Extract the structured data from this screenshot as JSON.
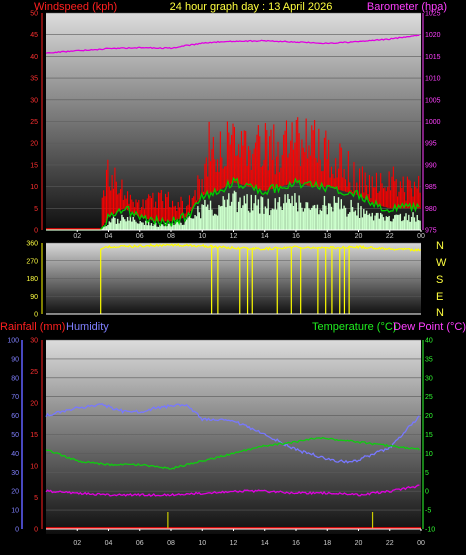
{
  "header": {
    "left_label": "Windspeed (kph)",
    "title": "24 hour graph day : 13 April 2026",
    "right_label": "Barometer (hpa)"
  },
  "colors": {
    "wind_gust": "#ff0000",
    "wind_avg": "#00cc00",
    "wind_min": "#ccffcc",
    "barometer": "#e000e0",
    "direction": "#ffff00",
    "rain": "#ff0000",
    "humidity": "#7878ff",
    "temperature": "#10cc10",
    "dewpoint": "#e000e0",
    "rain_tick": "#cccc00"
  },
  "x_ticks": [
    "02",
    "04",
    "06",
    "08",
    "10",
    "12",
    "14",
    "16",
    "18",
    "20",
    "22",
    "00"
  ],
  "wind_panel": {
    "left_ticks": [
      "0",
      "5",
      "10",
      "15",
      "20",
      "25",
      "30",
      "35",
      "40",
      "45",
      "50"
    ],
    "right_ticks": [
      "975",
      "980",
      "985",
      "990",
      "995",
      "1000",
      "1005",
      "1010",
      "1015",
      "1020",
      "1025"
    ]
  },
  "direction_panel": {
    "left_ticks": [
      "0",
      "90",
      "180",
      "270",
      "360"
    ],
    "compass": [
      "N",
      "W",
      "S",
      "E",
      "N"
    ]
  },
  "climate_panel": {
    "rain_label": "Rainfall (mm)",
    "humidity_label": "Humidity",
    "temperature_label": "Temperature (°C)",
    "dewpoint_label": "Dew Point (°C)",
    "humidity_ticks": [
      "0",
      "10",
      "20",
      "30",
      "40",
      "50",
      "60",
      "70",
      "80",
      "90",
      "100"
    ],
    "rain_ticks": [
      "0",
      "5",
      "10",
      "15",
      "20",
      "25",
      "30"
    ],
    "temp_ticks": [
      "-10",
      "-5",
      "0",
      "5",
      "10",
      "15",
      "20",
      "25",
      "30",
      "35",
      "40"
    ]
  },
  "chart_data": [
    {
      "type": "line",
      "title": "24 hour graph day : 13 April 2026",
      "x_unit": "hours since midnight (00 … 24)",
      "y_left": {
        "label": "Windspeed (kph)",
        "ylim": [
          0,
          50
        ]
      },
      "y_right": {
        "label": "Barometer (hpa)",
        "ylim": [
          975,
          1025
        ]
      },
      "series": [
        {
          "name": "Barometer (hpa)",
          "axis": "right",
          "x": [
            0,
            2,
            4,
            6,
            8,
            9,
            10,
            11,
            12,
            14,
            16,
            18,
            20,
            22,
            24
          ],
          "values": [
            1015.8,
            1016.3,
            1016.8,
            1017.0,
            1016.9,
            1017.5,
            1018.0,
            1018.3,
            1018.5,
            1018.6,
            1018.3,
            1018.0,
            1018.4,
            1019.0,
            1020.0
          ]
        }
      ],
      "unnamed_series_visible": [
        {
          "axis": "left",
          "style": "red gust spikes",
          "x": [
            0,
            1,
            2,
            3,
            3.5,
            4,
            4.5,
            5,
            6,
            7,
            8,
            9,
            10,
            10.5,
            11,
            12,
            13,
            14,
            15,
            16,
            17,
            18,
            19,
            20,
            21,
            22,
            23,
            24
          ],
          "values": [
            0,
            0,
            0,
            0,
            8,
            16,
            14,
            10,
            7,
            8,
            9,
            6,
            14,
            24,
            22,
            25,
            22,
            25,
            22,
            25,
            24,
            22,
            18,
            14,
            12,
            14,
            12,
            13
          ]
        },
        {
          "axis": "left",
          "style": "green average line",
          "x": [
            0,
            3.5,
            4,
            5,
            6,
            7,
            8,
            9,
            10,
            11,
            12,
            13,
            14,
            15,
            16,
            17,
            18,
            19,
            20,
            21,
            22,
            23,
            24
          ],
          "values": [
            0,
            0,
            3,
            5,
            3,
            2,
            2,
            3,
            8,
            9,
            11,
            10,
            9,
            10,
            11,
            10,
            10,
            9,
            8,
            6,
            5,
            5,
            5
          ]
        }
      ]
    },
    {
      "type": "scatter",
      "y_left": {
        "label": "",
        "ylim": [
          0,
          360
        ]
      },
      "series": [
        {
          "name": "wind direction",
          "x": [
            3.5,
            4,
            6,
            8,
            10,
            12,
            14,
            16,
            18,
            20,
            22,
            24
          ],
          "values": [
            330,
            340,
            345,
            350,
            345,
            335,
            330,
            340,
            335,
            340,
            330,
            325
          ]
        }
      ]
    },
    {
      "type": "line",
      "y_left_outer": {
        "label": "Humidity",
        "ylim": [
          0,
          100
        ]
      },
      "y_left_inner": {
        "label": "Rainfall (mm)",
        "ylim": [
          0,
          30
        ]
      },
      "y_right": {
        "label": "Temperature (°C)",
        "ylim": [
          -10,
          40
        ]
      },
      "series": [
        {
          "name": "Humidity",
          "axis": "left_outer",
          "x": [
            0,
            2,
            3.5,
            5,
            6,
            7,
            8,
            9,
            10,
            12,
            14,
            16,
            18,
            19.5,
            21,
            22,
            23,
            24
          ],
          "values": [
            60,
            64,
            66,
            62,
            62,
            64,
            65,
            66,
            58,
            57,
            50,
            42,
            37,
            35,
            40,
            43,
            52,
            60
          ]
        },
        {
          "name": "Temperature (°C)",
          "axis": "right",
          "x": [
            0,
            2,
            4,
            6,
            8,
            10,
            12,
            14,
            16,
            17,
            18,
            20,
            22,
            24
          ],
          "values": [
            11,
            8,
            7,
            7,
            6,
            8,
            10,
            12,
            13,
            14,
            14,
            13,
            12,
            11
          ]
        },
        {
          "name": "Dew Point (°C)",
          "axis": "right",
          "x": [
            0,
            2,
            4,
            6,
            8,
            10,
            12,
            14,
            16,
            18,
            20,
            22,
            24
          ],
          "values": [
            0,
            -0.5,
            -1,
            -1,
            -1,
            -0.5,
            0,
            0,
            -0.5,
            -0.5,
            -1,
            0,
            1.5
          ]
        },
        {
          "name": "Rainfall (mm)",
          "axis": "left_inner",
          "x": [
            0,
            24
          ],
          "values": [
            0,
            0
          ]
        }
      ]
    }
  ]
}
